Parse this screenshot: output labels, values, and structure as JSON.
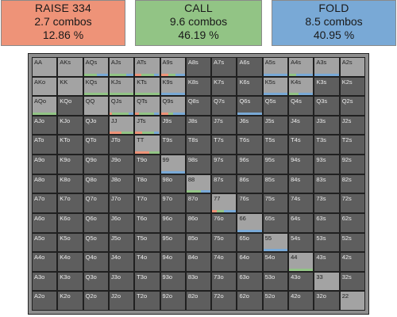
{
  "summary": {
    "raise": {
      "title": "RAISE 334",
      "combos": "2.7 combos",
      "percent": "12.86 %",
      "color": "#ee9378"
    },
    "call": {
      "title": "CALL",
      "combos": "9.6 combos",
      "percent": "46.19 %",
      "color": "#92c485"
    },
    "fold": {
      "title": "FOLD",
      "combos": "8.5 combos",
      "percent": "40.95 %",
      "color": "#79a9d6"
    }
  },
  "action_colors": {
    "raise": "#ee9378",
    "call": "#92c485",
    "fold": "#79a9d6"
  },
  "matrix": {
    "rows": [
      [
        "AA",
        "AKs",
        "AQs",
        "AJs",
        "ATs",
        "A9s",
        "A8s",
        "A7s",
        "A6s",
        "A5s",
        "A4s",
        "A3s",
        "A2s"
      ],
      [
        "AKo",
        "KK",
        "KQs",
        "KJs",
        "KTs",
        "K9s",
        "K8s",
        "K7s",
        "K6s",
        "K5s",
        "K4s",
        "K3s",
        "K2s"
      ],
      [
        "AQo",
        "KQo",
        "QQ",
        "QJs",
        "QTs",
        "Q9s",
        "Q8s",
        "Q7s",
        "Q6s",
        "Q5s",
        "Q4s",
        "Q3s",
        "Q2s"
      ],
      [
        "AJo",
        "KJo",
        "QJo",
        "JJ",
        "JTs",
        "J9s",
        "J8s",
        "J7s",
        "J6s",
        "J5s",
        "J4s",
        "J3s",
        "J2s"
      ],
      [
        "ATo",
        "KTo",
        "QTo",
        "JTo",
        "TT",
        "T9s",
        "T8s",
        "T7s",
        "T6s",
        "T5s",
        "T4s",
        "T3s",
        "T2s"
      ],
      [
        "A9o",
        "K9o",
        "Q9o",
        "J9o",
        "T9o",
        "99",
        "98s",
        "97s",
        "96s",
        "95s",
        "94s",
        "93s",
        "92s"
      ],
      [
        "A8o",
        "K8o",
        "Q8o",
        "J8o",
        "T8o",
        "98o",
        "88",
        "87s",
        "86s",
        "85s",
        "84s",
        "83s",
        "82s"
      ],
      [
        "A7o",
        "K7o",
        "Q7o",
        "J7o",
        "T7o",
        "97o",
        "87o",
        "77",
        "76s",
        "75s",
        "74s",
        "73s",
        "72s"
      ],
      [
        "A6o",
        "K6o",
        "Q6o",
        "J6o",
        "T6o",
        "96o",
        "86o",
        "76o",
        "66",
        "65s",
        "64s",
        "63s",
        "62s"
      ],
      [
        "A5o",
        "K5o",
        "Q5o",
        "J5o",
        "T5o",
        "95o",
        "85o",
        "75o",
        "65o",
        "55",
        "54s",
        "53s",
        "52s"
      ],
      [
        "A4o",
        "K4o",
        "Q4o",
        "J4o",
        "T4o",
        "94o",
        "84o",
        "74o",
        "64o",
        "54o",
        "44",
        "43s",
        "42s"
      ],
      [
        "A3o",
        "K3o",
        "Q3o",
        "J3o",
        "T3o",
        "93o",
        "83o",
        "73o",
        "63o",
        "53o",
        "43o",
        "33",
        "32s"
      ],
      [
        "A2o",
        "K2o",
        "Q2o",
        "J2o",
        "T2o",
        "92o",
        "82o",
        "72o",
        "62o",
        "52o",
        "42o",
        "32o",
        "22"
      ]
    ],
    "highlighted": [
      "AA",
      "AKs",
      "AQs",
      "AJs",
      "ATs",
      "A9s",
      "A5s",
      "A4s",
      "A3s",
      "A2s",
      "AKo",
      "KK",
      "KQs",
      "KJs",
      "KTs",
      "K9s",
      "K5s",
      "K4s",
      "AQo",
      "QQ",
      "QJs",
      "QTs",
      "Q9s",
      "JJ",
      "JTs",
      "TT",
      "99",
      "88",
      "77",
      "66",
      "55",
      "44",
      "33",
      "22"
    ],
    "strategy": {
      "AQs": {
        "call": 0.55,
        "fold": 0.45
      },
      "AJs": {
        "call": 0.7,
        "fold": 0.3
      },
      "ATs": {
        "raise": 0.25,
        "call": 0.55,
        "fold": 0.2
      },
      "A9s": {
        "raise": 0.3,
        "call": 0.3,
        "fold": 0.4
      },
      "A5s": {
        "fold": 1.0
      },
      "A4s": {
        "call": 0.3,
        "fold": 0.7
      },
      "A3s": {
        "fold": 1.0
      },
      "KQs": {
        "call": 1.0
      },
      "KJs": {
        "call": 1.0
      },
      "KTs": {
        "call": 1.0
      },
      "K9s": {
        "fold": 1.0
      },
      "K5s": {
        "fold": 1.0
      },
      "K4s": {
        "fold": 0.6,
        "call": 0.4
      },
      "AQo": {
        "call": 1.0
      },
      "QJs": {
        "raise": 0.1,
        "call": 0.7,
        "fold": 0.2
      },
      "QTs": {
        "raise": 0.15,
        "call": 0.65,
        "fold": 0.2
      },
      "Q9s": {
        "raise": 0.3,
        "call": 0.2,
        "fold": 0.5
      },
      "Q6s": {
        "fold": 1.0
      },
      "JJ": {
        "raise": 0.5,
        "call": 0.5
      },
      "JTs": {
        "raise": 0.3,
        "call": 0.5,
        "fold": 0.2
      },
      "TT": {
        "raise": 0.6,
        "call": 0.4
      },
      "99": {
        "fold": 1.0
      },
      "88": {
        "call": 0.6,
        "fold": 0.4
      },
      "77": {
        "raise": 0.2,
        "call": 0.3,
        "fold": 0.5
      },
      "66": {
        "fold": 1.0
      },
      "55": {
        "fold": 1.0
      },
      "44": {
        "call": 1.0
      }
    }
  }
}
